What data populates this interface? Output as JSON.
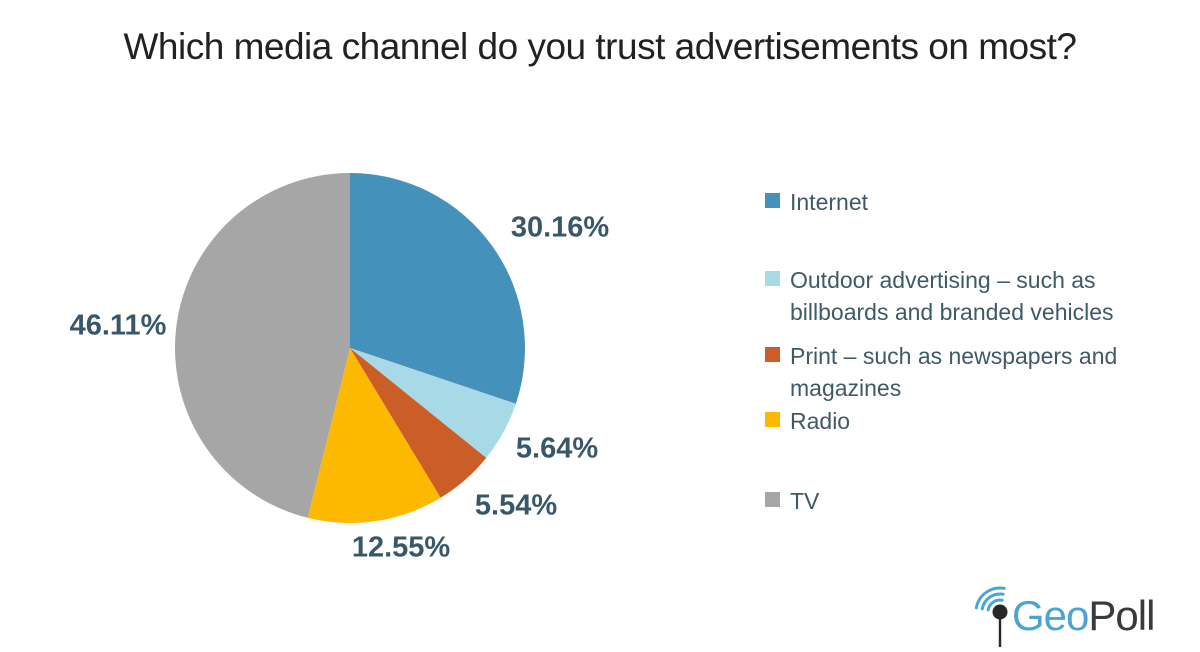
{
  "title": "Which media channel do you trust advertisements on most?",
  "chart_data": {
    "type": "pie",
    "title": "Which media channel do you trust advertisements on most?",
    "start_angle": "12 o'clock, clockwise",
    "legend_position": "right",
    "data_labels": "outside, percentage",
    "slices": [
      {
        "id": "internet",
        "label": "Internet",
        "value": 30.16,
        "display": "30.16%",
        "color": "#4492bc"
      },
      {
        "id": "outdoor",
        "label": "Outdoor advertising – such as billboards and branded vehicles",
        "value": 5.64,
        "display": "5.64%",
        "color": "#a8d9e6"
      },
      {
        "id": "print",
        "label": "Print – such as newspapers and magazines",
        "value": 5.54,
        "display": "5.54%",
        "color": "#cb5e27"
      },
      {
        "id": "radio",
        "label": "Radio",
        "value": 12.55,
        "display": "12.55%",
        "color": "#fdb900"
      },
      {
        "id": "tv",
        "label": "TV",
        "value": 46.11,
        "display": "46.11%",
        "color": "#a6a6a6"
      }
    ]
  },
  "logo": {
    "geo": "Geo",
    "poll": "Poll",
    "geo_color": "#4aa5d2",
    "poll_color": "#3a3a3c"
  },
  "colors": {
    "title_text": "#212121",
    "data_label_text": "#38586a",
    "legend_text": "#3e5a66",
    "background": "#ffffff"
  }
}
